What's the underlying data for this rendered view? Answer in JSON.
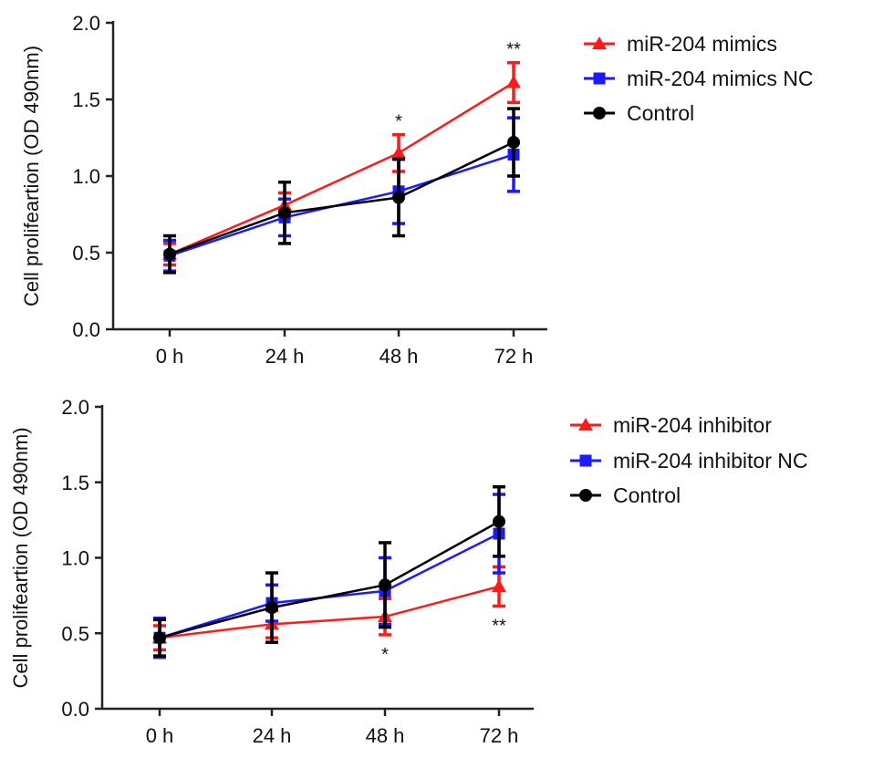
{
  "chart_data": [
    {
      "type": "line",
      "title": "",
      "xlabel": "",
      "ylabel": "Cell prolifeartion (OD 490nm)",
      "categories": [
        "0 h",
        "24 h",
        "48 h",
        "72 h"
      ],
      "ylim": [
        0,
        2.0
      ],
      "yticks": [
        "0.0",
        "0.5",
        "1.0",
        "1.5",
        "2.0"
      ],
      "legend_position": "top-right",
      "series": [
        {
          "name": "miR-204 mimics",
          "color": "#ff1a1a",
          "marker": "triangle",
          "values": [
            0.49,
            0.81,
            1.15,
            1.61
          ],
          "errors": [
            0.07,
            0.08,
            0.12,
            0.13
          ]
        },
        {
          "name": "miR-204 mimics NC",
          "color": "#1a1aff",
          "marker": "square",
          "values": [
            0.48,
            0.73,
            0.9,
            1.14
          ],
          "errors": [
            0.1,
            0.12,
            0.21,
            0.24
          ]
        },
        {
          "name": "Control",
          "color": "#000000",
          "marker": "circle",
          "values": [
            0.49,
            0.76,
            0.86,
            1.22
          ],
          "errors": [
            0.12,
            0.2,
            0.25,
            0.22
          ]
        }
      ],
      "annotations": [
        {
          "category": "48 h",
          "text": "*",
          "position": "above"
        },
        {
          "category": "72 h",
          "text": "**",
          "position": "above"
        }
      ]
    },
    {
      "type": "line",
      "title": "",
      "xlabel": "",
      "ylabel": "Cell prolifeartion (OD 490nm)",
      "categories": [
        "0 h",
        "24 h",
        "48 h",
        "72 h"
      ],
      "ylim": [
        0,
        2.0
      ],
      "yticks": [
        "0.0",
        "0.5",
        "1.0",
        "1.5",
        "2.0"
      ],
      "legend_position": "top-right",
      "series": [
        {
          "name": "miR-204 inhibitor",
          "color": "#ff1a1a",
          "marker": "triangle",
          "values": [
            0.47,
            0.56,
            0.61,
            0.81
          ],
          "errors": [
            0.08,
            0.09,
            0.12,
            0.13
          ]
        },
        {
          "name": "miR-204 inhibitor NC",
          "color": "#1a1aff",
          "marker": "square",
          "values": [
            0.47,
            0.7,
            0.78,
            1.16
          ],
          "errors": [
            0.13,
            0.12,
            0.22,
            0.26
          ]
        },
        {
          "name": "Control",
          "color": "#000000",
          "marker": "circle",
          "values": [
            0.47,
            0.67,
            0.82,
            1.24
          ],
          "errors": [
            0.12,
            0.23,
            0.28,
            0.23
          ]
        }
      ],
      "annotations": [
        {
          "category": "48 h",
          "text": "*",
          "position": "below"
        },
        {
          "category": "72 h",
          "text": "**",
          "position": "below"
        }
      ]
    }
  ]
}
